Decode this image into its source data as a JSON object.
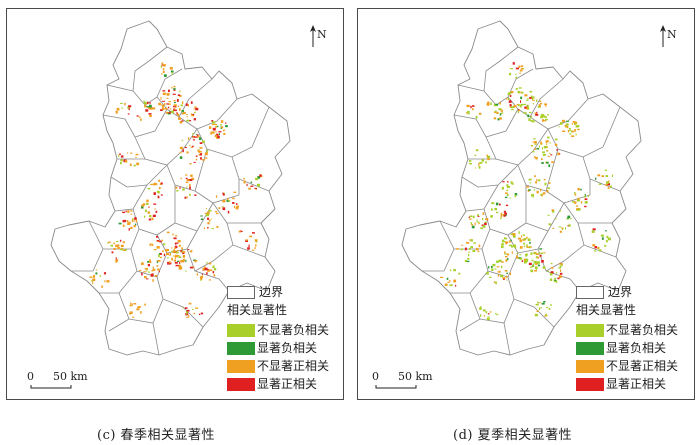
{
  "colors": {
    "boundary": "#8a8a8a",
    "not_sig_negative": "#a8cf2a",
    "sig_negative": "#2e9a35",
    "not_sig_positive": "#f0a020",
    "sig_positive": "#e02020"
  },
  "panels": [
    {
      "id": "c",
      "caption": "(c) 春季相关显著性",
      "north_label": "N",
      "scale": {
        "zero": "0",
        "distance": "50 km"
      },
      "legend": {
        "boundary_label": "边界",
        "title": "相关显著性",
        "items": [
          {
            "label": "不显著负相关",
            "color": "#a8cf2a"
          },
          {
            "label": "显著负相关",
            "color": "#2e9a35"
          },
          {
            "label": "不显著正相关",
            "color": "#f0a020"
          },
          {
            "label": "显著正相关",
            "color": "#e02020"
          }
        ]
      }
    },
    {
      "id": "d",
      "caption": "(d) 夏季相关显著性",
      "north_label": "N",
      "scale": {
        "zero": "0",
        "distance": "50 km"
      },
      "legend": {
        "boundary_label": "边界",
        "title": "相关显著性",
        "items": [
          {
            "label": "不显著负相关",
            "color": "#a8cf2a"
          },
          {
            "label": "显著负相关",
            "color": "#2e9a35"
          },
          {
            "label": "不显著正相关",
            "color": "#f0a020"
          },
          {
            "label": "显著正相关",
            "color": "#e02020"
          }
        ]
      }
    }
  ]
}
